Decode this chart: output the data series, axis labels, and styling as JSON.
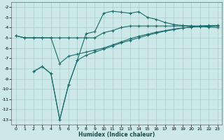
{
  "xlabel": "Humidex (Indice chaleur)",
  "ylabel": "",
  "bg_color": "#cce8e8",
  "grid_color": "#aacccc",
  "line_color": "#1a6b6b",
  "xlim": [
    -0.5,
    23.5
  ],
  "ylim": [
    -13.5,
    -1.5
  ],
  "yticks": [
    -13,
    -12,
    -11,
    -10,
    -9,
    -8,
    -7,
    -6,
    -5,
    -4,
    -3,
    -2
  ],
  "xticks": [
    0,
    1,
    2,
    3,
    4,
    5,
    6,
    7,
    8,
    9,
    10,
    11,
    12,
    13,
    14,
    15,
    16,
    17,
    18,
    19,
    20,
    21,
    22,
    23
  ],
  "line1_x": [
    0,
    1,
    2,
    3,
    4,
    5,
    6,
    7,
    8,
    9,
    10,
    11,
    12,
    13,
    14,
    15,
    16,
    17,
    18,
    19,
    20,
    21,
    22,
    23
  ],
  "line1_y": [
    -4.8,
    -5.0,
    -5.0,
    -5.0,
    -5.0,
    -5.0,
    -5.0,
    -5.0,
    -5.0,
    -5.0,
    -4.5,
    -4.3,
    -4.0,
    -3.85,
    -3.85,
    -3.85,
    -3.85,
    -3.85,
    -3.85,
    -3.85,
    -3.85,
    -3.85,
    -3.85,
    -3.85
  ],
  "line2_x": [
    2,
    3,
    4,
    5,
    6,
    7,
    8,
    9,
    10,
    11,
    12,
    13,
    14,
    15,
    16,
    17,
    18,
    19,
    20,
    21,
    22,
    23
  ],
  "line2_y": [
    -8.3,
    -7.8,
    -8.5,
    -13.0,
    -9.6,
    -7.2,
    -6.7,
    -6.4,
    -6.1,
    -5.8,
    -5.5,
    -5.25,
    -5.0,
    -4.75,
    -4.55,
    -4.35,
    -4.2,
    -4.05,
    -3.95,
    -3.85,
    -3.8,
    -3.8
  ],
  "line3_x": [
    2,
    3,
    4,
    5,
    6,
    7,
    8,
    9,
    10,
    11,
    12,
    13,
    14,
    15,
    16,
    17,
    18,
    19,
    20,
    21,
    22,
    23
  ],
  "line3_y": [
    -8.3,
    -7.8,
    -8.5,
    -13.0,
    -9.6,
    -7.2,
    -4.6,
    -4.4,
    -2.6,
    -2.4,
    -2.5,
    -2.6,
    -2.45,
    -3.0,
    -3.2,
    -3.5,
    -3.7,
    -3.8,
    -3.85,
    -3.9,
    -3.95,
    -4.0
  ],
  "line4_x": [
    0,
    1,
    2,
    3,
    4,
    5,
    6,
    7,
    8,
    9,
    10,
    11,
    12,
    13,
    14,
    15,
    16,
    17,
    18,
    19,
    20,
    21,
    22,
    23
  ],
  "line4_y": [
    -4.8,
    -5.0,
    -5.0,
    -5.0,
    -5.0,
    -7.5,
    -6.8,
    -6.6,
    -6.4,
    -6.2,
    -6.0,
    -5.7,
    -5.4,
    -5.1,
    -4.85,
    -4.65,
    -4.45,
    -4.3,
    -4.15,
    -4.05,
    -3.95,
    -3.9,
    -3.85,
    -3.8
  ]
}
